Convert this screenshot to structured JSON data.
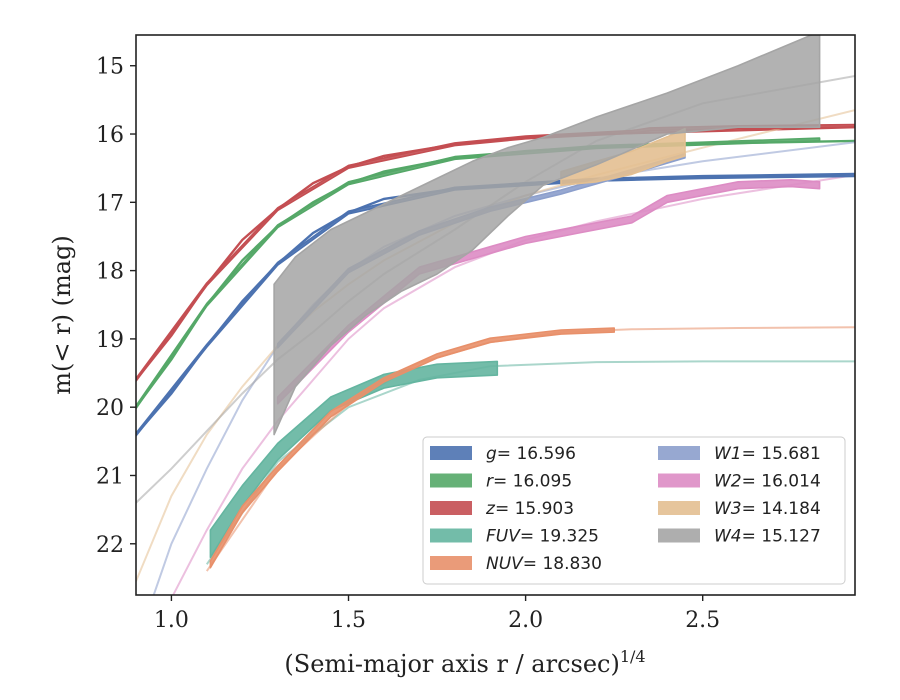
{
  "chart_data": {
    "type": "line",
    "xlabel": "(Semi-major axis r / arcsec)",
    "xlabel_power": "1/4",
    "ylabel": "m(< r) (mag)",
    "xlim": [
      0.9,
      2.93
    ],
    "ylim": [
      22.75,
      14.55
    ],
    "y_inverted": true,
    "xticks": [
      1.0,
      1.5,
      2.0,
      2.5
    ],
    "xtick_labels": [
      "1.0",
      "1.5",
      "2.0",
      "2.5"
    ],
    "yticks": [
      15,
      16,
      17,
      18,
      19,
      20,
      21,
      22
    ],
    "ytick_labels": [
      "15",
      "16",
      "17",
      "18",
      "19",
      "20",
      "21",
      "22"
    ],
    "grid": false,
    "legend_position": "lower-right",
    "series": [
      {
        "name": "g = 16.596",
        "label_var": "g",
        "label_val": "= 16.596",
        "color": "#4c72b0",
        "model": {
          "x": [
            0.9,
            1.0,
            1.1,
            1.2,
            1.3,
            1.4,
            1.5,
            1.6,
            1.8,
            2.0,
            2.2,
            2.5,
            2.93
          ],
          "y": [
            20.4,
            19.8,
            19.1,
            18.45,
            17.9,
            17.45,
            17.15,
            16.95,
            16.8,
            16.72,
            16.67,
            16.63,
            16.6
          ]
        },
        "data": {
          "x": [
            0.9,
            1.1,
            1.3,
            1.5,
            1.8,
            2.2,
            2.5,
            2.93
          ],
          "y": [
            20.4,
            19.1,
            17.9,
            17.15,
            16.8,
            16.67,
            16.63,
            16.6
          ],
          "err": [
            0.02,
            0.02,
            0.02,
            0.02,
            0.02,
            0.02,
            0.02,
            0.02
          ]
        }
      },
      {
        "name": "r = 16.095",
        "label_var": "r",
        "label_val": "= 16.095",
        "color": "#55a868",
        "model": {
          "x": [
            0.9,
            1.0,
            1.1,
            1.2,
            1.3,
            1.4,
            1.5,
            1.6,
            1.8,
            2.0,
            2.2,
            2.5,
            2.93
          ],
          "y": [
            20.0,
            19.3,
            18.5,
            17.85,
            17.35,
            17.0,
            16.72,
            16.55,
            16.35,
            16.25,
            16.19,
            16.14,
            16.1
          ]
        },
        "data": {
          "x": [
            0.9,
            1.1,
            1.3,
            1.5,
            1.8,
            2.2,
            2.5,
            2.83
          ],
          "y": [
            20.0,
            18.5,
            17.35,
            16.72,
            16.35,
            16.19,
            16.14,
            16.08
          ],
          "err": [
            0.02,
            0.02,
            0.02,
            0.02,
            0.02,
            0.02,
            0.02,
            0.02
          ]
        }
      },
      {
        "name": "z = 15.903",
        "label_var": "z",
        "label_val": "= 15.903",
        "color": "#c44e52",
        "model": {
          "x": [
            0.9,
            1.0,
            1.1,
            1.2,
            1.3,
            1.4,
            1.5,
            1.6,
            1.8,
            2.0,
            2.2,
            2.5,
            2.93
          ],
          "y": [
            19.6,
            18.95,
            18.2,
            17.55,
            17.1,
            16.72,
            16.48,
            16.32,
            16.15,
            16.05,
            16.0,
            15.96,
            15.9
          ]
        },
        "data": {
          "x": [
            0.9,
            1.1,
            1.3,
            1.5,
            1.8,
            2.0,
            2.3,
            2.35,
            2.6,
            2.93
          ],
          "y": [
            19.6,
            18.2,
            17.1,
            16.48,
            16.15,
            16.05,
            15.97,
            15.93,
            15.9,
            15.88
          ],
          "err": [
            0.02,
            0.02,
            0.02,
            0.02,
            0.02,
            0.02,
            0.02,
            0.02,
            0.02,
            0.02
          ]
        }
      },
      {
        "name": "FUV = 19.325",
        "label_var": "FUV",
        "label_val": "= 19.325",
        "color": "#64b5a0",
        "model": {
          "x": [
            1.1,
            1.3,
            1.5,
            1.7,
            1.9,
            2.2,
            2.5,
            2.93
          ],
          "y": [
            22.3,
            20.8,
            20.0,
            19.6,
            19.4,
            19.34,
            19.33,
            19.33
          ]
        },
        "data": {
          "x": [
            1.11,
            1.2,
            1.3,
            1.45,
            1.6,
            1.75,
            1.92
          ],
          "y": [
            22.0,
            21.3,
            20.65,
            19.95,
            19.62,
            19.47,
            19.43
          ],
          "err": [
            0.2,
            0.15,
            0.12,
            0.1,
            0.1,
            0.1,
            0.1
          ]
        }
      },
      {
        "name": "NUV = 18.830",
        "label_var": "NUV",
        "label_val": "= 18.830",
        "color": "#e8906a",
        "model": {
          "x": [
            1.1,
            1.3,
            1.5,
            1.7,
            1.9,
            2.1,
            2.3,
            2.6,
            2.93
          ],
          "y": [
            22.4,
            20.9,
            19.95,
            19.35,
            19.05,
            18.9,
            18.86,
            18.84,
            18.83
          ]
        },
        "data": {
          "x": [
            1.11,
            1.2,
            1.3,
            1.45,
            1.6,
            1.75,
            1.9,
            2.1,
            2.25
          ],
          "y": [
            22.3,
            21.5,
            20.9,
            20.1,
            19.6,
            19.25,
            19.02,
            18.9,
            18.87
          ],
          "err": [
            0.05,
            0.05,
            0.04,
            0.04,
            0.03,
            0.03,
            0.03,
            0.03,
            0.03
          ]
        }
      },
      {
        "name": "W1 = 15.681",
        "label_var": "W1",
        "label_val": "= 15.681",
        "color": "#8c9fcc",
        "model": {
          "x": [
            0.9,
            1.0,
            1.1,
            1.2,
            1.3,
            1.4,
            1.5,
            1.6,
            1.8,
            2.0,
            2.2,
            2.5,
            2.93
          ],
          "y": [
            23.5,
            22.0,
            20.9,
            19.9,
            19.1,
            18.5,
            18.0,
            17.65,
            17.2,
            16.9,
            16.65,
            16.4,
            16.12
          ]
        },
        "data": {
          "x": [
            1.3,
            1.5,
            1.7,
            1.9,
            2.1,
            2.3,
            2.45
          ],
          "y": [
            19.1,
            18.0,
            17.45,
            17.1,
            16.85,
            16.55,
            16.32
          ],
          "err": [
            0.03,
            0.03,
            0.03,
            0.03,
            0.03,
            0.03,
            0.03
          ]
        }
      },
      {
        "name": "W2 = 16.014",
        "label_var": "W2",
        "label_val": "= 16.014",
        "color": "#dd8cc4",
        "model": {
          "x": [
            0.9,
            1.0,
            1.1,
            1.2,
            1.3,
            1.4,
            1.5,
            1.6,
            1.8,
            2.0,
            2.2,
            2.5,
            2.93
          ],
          "y": [
            24.0,
            22.8,
            21.8,
            20.9,
            20.2,
            19.6,
            19.0,
            18.55,
            17.95,
            17.55,
            17.28,
            16.95,
            16.6
          ]
        },
        "data": {
          "x": [
            1.3,
            1.5,
            1.7,
            1.9,
            2.0,
            2.15,
            2.3,
            2.4,
            2.6,
            2.75,
            2.83
          ],
          "y": [
            19.9,
            18.85,
            18.0,
            17.7,
            17.55,
            17.4,
            17.25,
            16.95,
            16.75,
            16.72,
            16.75
          ],
          "err": [
            0.05,
            0.05,
            0.05,
            0.05,
            0.05,
            0.05,
            0.05,
            0.05,
            0.05,
            0.05,
            0.05
          ]
        }
      },
      {
        "name": "W3 = 14.184",
        "label_var": "W3",
        "label_val": "= 14.184",
        "color": "#e3bf91",
        "model": {
          "x": [
            0.9,
            1.0,
            1.1,
            1.2,
            1.3,
            1.4,
            1.5,
            1.6,
            1.8,
            2.0,
            2.2,
            2.5,
            2.93
          ],
          "y": [
            22.55,
            21.3,
            20.4,
            19.7,
            19.1,
            18.6,
            18.2,
            17.85,
            17.3,
            16.9,
            16.6,
            16.2,
            15.65
          ]
        },
        "data": {
          "x": [
            2.1,
            2.2,
            2.3,
            2.4,
            2.45
          ],
          "y": [
            16.65,
            16.55,
            16.42,
            16.22,
            16.12
          ],
          "err": [
            0.1,
            0.15,
            0.17,
            0.18,
            0.2
          ]
        }
      },
      {
        "name": "W4 = 15.127",
        "label_var": "W4",
        "label_val": "= 15.127",
        "color": "#a5a5a5",
        "model": {
          "x": [
            0.9,
            1.0,
            1.1,
            1.2,
            1.3,
            1.4,
            1.5,
            1.6,
            1.8,
            2.0,
            2.2,
            2.5,
            2.93
          ],
          "y": [
            21.4,
            20.9,
            20.35,
            19.8,
            19.3,
            18.9,
            18.45,
            18.05,
            17.4,
            16.7,
            16.1,
            15.55,
            15.15
          ]
        },
        "data": {
          "x": [
            1.29,
            1.35,
            1.45,
            1.55,
            1.65,
            1.75,
            1.85,
            1.95,
            2.05,
            2.2,
            2.4,
            2.6,
            2.83
          ],
          "y": [
            19.3,
            18.75,
            18.25,
            17.9,
            17.6,
            17.35,
            17.05,
            16.7,
            16.4,
            16.1,
            15.7,
            15.45,
            15.2
          ],
          "err": [
            1.1,
            0.95,
            0.85,
            0.75,
            0.7,
            0.7,
            0.65,
            0.5,
            0.35,
            0.35,
            0.3,
            0.45,
            0.7
          ]
        }
      }
    ]
  }
}
